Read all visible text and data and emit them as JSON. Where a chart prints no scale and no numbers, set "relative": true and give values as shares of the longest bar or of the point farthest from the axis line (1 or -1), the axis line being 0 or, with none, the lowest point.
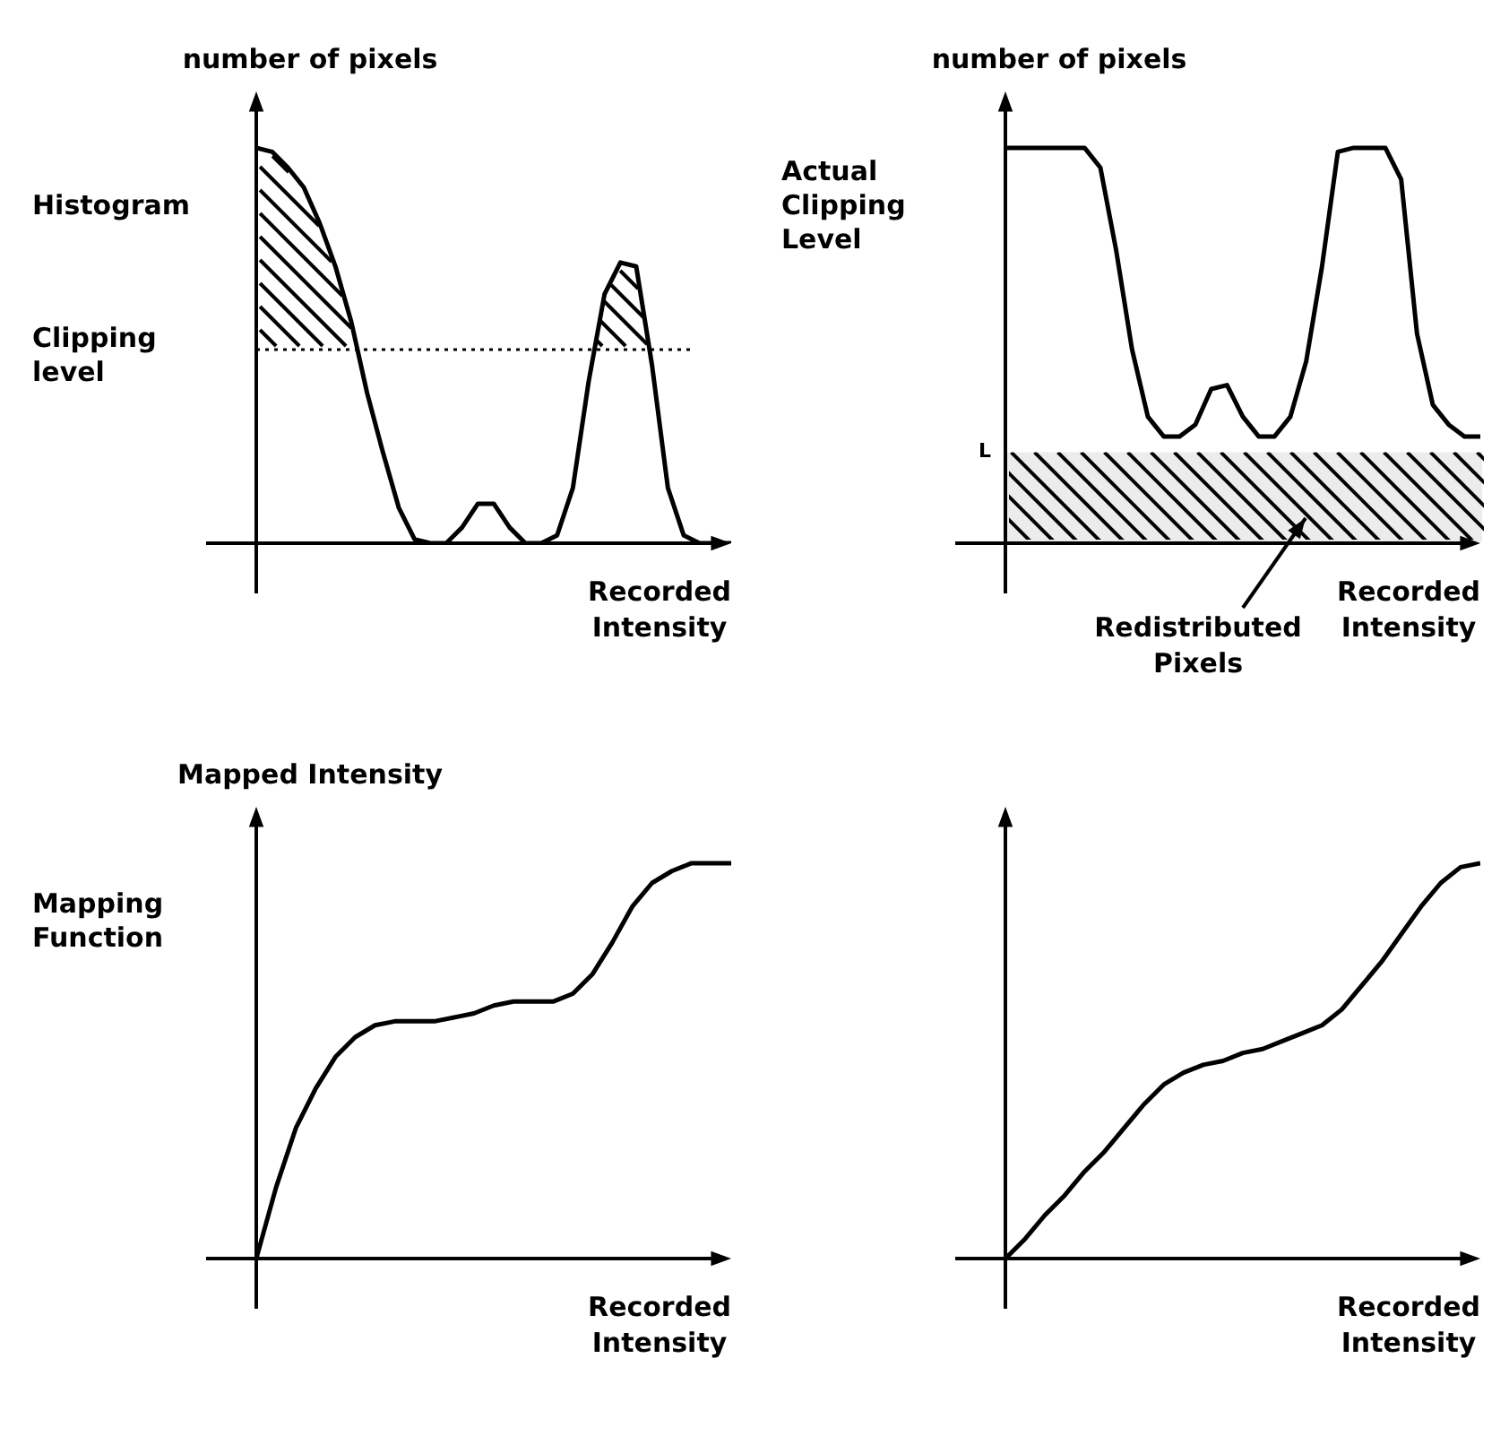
{
  "chart_data": [
    {
      "type": "line",
      "ylabel": "number of pixels",
      "xlabel": "Recorded Intensity",
      "relative": true,
      "marker": "none",
      "annotations": [
        "Histogram"
      ],
      "categories": [
        null,
        null,
        null,
        null,
        null,
        null,
        null,
        null,
        null,
        null,
        null,
        null,
        null,
        null,
        null,
        null,
        null,
        null,
        null,
        null,
        null,
        null,
        null,
        null,
        null,
        null,
        null,
        null,
        null,
        null,
        null
      ],
      "series": [
        {
          "color": "#000000",
          "values": [
            1.0,
            0.99,
            0.95,
            0.9,
            0.81,
            0.7,
            0.56,
            0.38,
            0.23,
            0.09,
            0.01,
            0,
            0,
            0.04,
            0.1,
            0.1,
            0.04,
            0,
            0,
            0.02,
            0.14,
            0.41,
            0.63,
            0.71,
            0.7,
            0.45,
            0.14,
            0.02,
            0,
            0,
            0
          ]
        }
      ],
      "ref_lines": [
        {
          "axis": "y",
          "value": 0.49,
          "label": "Clipping level",
          "line_style": "dotted"
        }
      ]
    },
    {
      "type": "line",
      "ylabel": "number of pixels",
      "xlabel": "Recorded Intensity",
      "relative": true,
      "marker": "none",
      "annotations": [
        "Actual Clipping Level",
        "Redistributed Pixels"
      ],
      "categories": [
        null,
        null,
        null,
        null,
        null,
        null,
        null,
        null,
        null,
        null,
        null,
        null,
        null,
        null,
        null,
        null,
        null,
        null,
        null,
        null,
        null,
        null,
        null,
        null,
        null,
        null,
        null,
        null,
        null,
        null,
        null
      ],
      "series": [
        {
          "color": "#000000",
          "values": [
            1,
            1,
            1,
            1,
            1,
            1,
            0.95,
            0.74,
            0.49,
            0.32,
            0.27,
            0.27,
            0.3,
            0.39,
            0.4,
            0.32,
            0.27,
            0.27,
            0.32,
            0.46,
            0.7,
            0.99,
            1,
            1,
            1,
            0.92,
            0.53,
            0.35,
            0.3,
            0.27,
            0.27
          ]
        }
      ],
      "bands": [
        {
          "axis": "y",
          "from": 0,
          "to": 0.23,
          "label": "L"
        }
      ]
    },
    {
      "type": "line",
      "ylabel": "Mapped Intensity",
      "xlabel": "Recorded Intensity",
      "relative": true,
      "marker": "none",
      "annotations": [
        "Mapping Function"
      ],
      "categories": [
        null,
        null,
        null,
        null,
        null,
        null,
        null,
        null,
        null,
        null,
        null,
        null,
        null,
        null,
        null,
        null,
        null,
        null,
        null,
        null,
        null,
        null,
        null,
        null,
        null
      ],
      "series": [
        {
          "color": "#000000",
          "values": [
            0,
            0.18,
            0.33,
            0.43,
            0.51,
            0.56,
            0.59,
            0.6,
            0.6,
            0.6,
            0.61,
            0.62,
            0.64,
            0.65,
            0.65,
            0.65,
            0.67,
            0.72,
            0.8,
            0.89,
            0.95,
            0.98,
            1,
            1,
            1
          ]
        }
      ]
    },
    {
      "type": "line",
      "xlabel": "Recorded Intensity",
      "relative": true,
      "marker": "none",
      "categories": [
        null,
        null,
        null,
        null,
        null,
        null,
        null,
        null,
        null,
        null,
        null,
        null,
        null,
        null,
        null,
        null,
        null,
        null,
        null,
        null,
        null,
        null,
        null,
        null,
        null
      ],
      "series": [
        {
          "color": "#000000",
          "values": [
            0,
            0.05,
            0.11,
            0.16,
            0.22,
            0.27,
            0.33,
            0.39,
            0.44,
            0.47,
            0.49,
            0.5,
            0.52,
            0.53,
            0.55,
            0.57,
            0.59,
            0.63,
            0.69,
            0.75,
            0.82,
            0.89,
            0.95,
            0.99,
            1
          ]
        }
      ]
    }
  ]
}
